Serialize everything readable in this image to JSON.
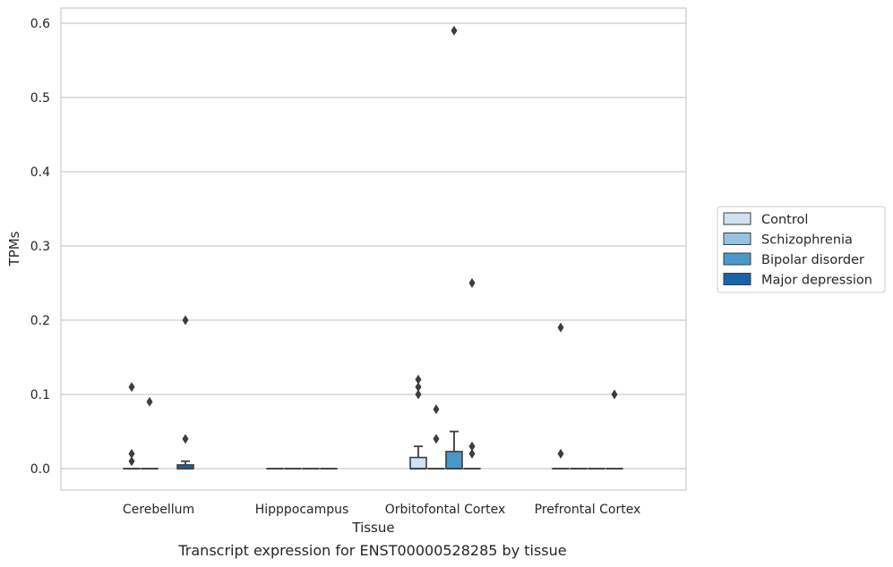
{
  "caption": "Transcript expression for ENST00000528285 by tissue",
  "chart_data": {
    "type": "box",
    "xlabel": "Tissue",
    "ylabel": "TPMs",
    "ylim": [
      -0.03,
      0.62
    ],
    "yticks": [
      0.0,
      0.1,
      0.2,
      0.3,
      0.4,
      0.5,
      0.6
    ],
    "ytick_labels": [
      "0.0",
      "0.1",
      "0.2",
      "0.3",
      "0.4",
      "0.5",
      "0.6"
    ],
    "grid": "horizontal",
    "legend_position": "right",
    "categories": [
      "Cerebellum",
      "Hipppocampus",
      "Orbitofontal Cortex",
      "Prefrontal Cortex"
    ],
    "series": [
      {
        "name": "Control",
        "color": "#d0e1f2"
      },
      {
        "name": "Schizophrenia",
        "color": "#94c4df"
      },
      {
        "name": "Bipolar disorder",
        "color": "#4a98c9"
      },
      {
        "name": "Major depression",
        "color": "#1764ab"
      }
    ],
    "boxes": [
      {
        "category": 0,
        "series": 0,
        "q1": 0,
        "median": 0,
        "q3": 0,
        "whisker_low": 0,
        "whisker_high": 0,
        "outliers": [
          0.11,
          0.02,
          0.01
        ]
      },
      {
        "category": 0,
        "series": 1,
        "q1": 0,
        "median": 0,
        "q3": 0,
        "whisker_low": 0,
        "whisker_high": 0,
        "outliers": [
          0.09
        ]
      },
      {
        "category": 0,
        "series": 3,
        "q1": 0,
        "median": 0,
        "q3": 0.005,
        "whisker_low": 0,
        "whisker_high": 0.01,
        "outliers": [
          0.2,
          0.04
        ]
      },
      {
        "category": 1,
        "series": 0,
        "q1": 0,
        "median": 0,
        "q3": 0,
        "whisker_low": 0,
        "whisker_high": 0,
        "outliers": []
      },
      {
        "category": 1,
        "series": 1,
        "q1": 0,
        "median": 0,
        "q3": 0,
        "whisker_low": 0,
        "whisker_high": 0,
        "outliers": []
      },
      {
        "category": 1,
        "series": 2,
        "q1": 0,
        "median": 0,
        "q3": 0,
        "whisker_low": 0,
        "whisker_high": 0,
        "outliers": []
      },
      {
        "category": 1,
        "series": 3,
        "q1": 0,
        "median": 0,
        "q3": 0,
        "whisker_low": 0,
        "whisker_high": 0,
        "outliers": []
      },
      {
        "category": 2,
        "series": 0,
        "q1": 0,
        "median": 0,
        "q3": 0.015,
        "whisker_low": 0,
        "whisker_high": 0.03,
        "outliers": [
          0.12,
          0.11,
          0.1
        ]
      },
      {
        "category": 2,
        "series": 1,
        "q1": 0,
        "median": 0,
        "q3": 0,
        "whisker_low": 0,
        "whisker_high": 0,
        "outliers": [
          0.08,
          0.04
        ]
      },
      {
        "category": 2,
        "series": 2,
        "q1": 0,
        "median": 0,
        "q3": 0.023,
        "whisker_low": 0,
        "whisker_high": 0.05,
        "outliers": [
          0.59
        ]
      },
      {
        "category": 2,
        "series": 3,
        "q1": 0,
        "median": 0,
        "q3": 0,
        "whisker_low": 0,
        "whisker_high": 0,
        "outliers": [
          0.25,
          0.03,
          0.02
        ]
      },
      {
        "category": 3,
        "series": 0,
        "q1": 0,
        "median": 0,
        "q3": 0,
        "whisker_low": 0,
        "whisker_high": 0,
        "outliers": [
          0.19,
          0.02
        ]
      },
      {
        "category": 3,
        "series": 1,
        "q1": 0,
        "median": 0,
        "q3": 0,
        "whisker_low": 0,
        "whisker_high": 0,
        "outliers": []
      },
      {
        "category": 3,
        "series": 2,
        "q1": 0,
        "median": 0,
        "q3": 0,
        "whisker_low": 0,
        "whisker_high": 0,
        "outliers": []
      },
      {
        "category": 3,
        "series": 3,
        "q1": 0,
        "median": 0,
        "q3": 0,
        "whisker_low": 0,
        "whisker_high": 0,
        "outliers": [
          0.1
        ]
      }
    ],
    "colors": {
      "grid": "#cccccc",
      "frame": "#cccccc",
      "stroke": "#3d3d3d",
      "marker": "#3d3d3d"
    }
  }
}
